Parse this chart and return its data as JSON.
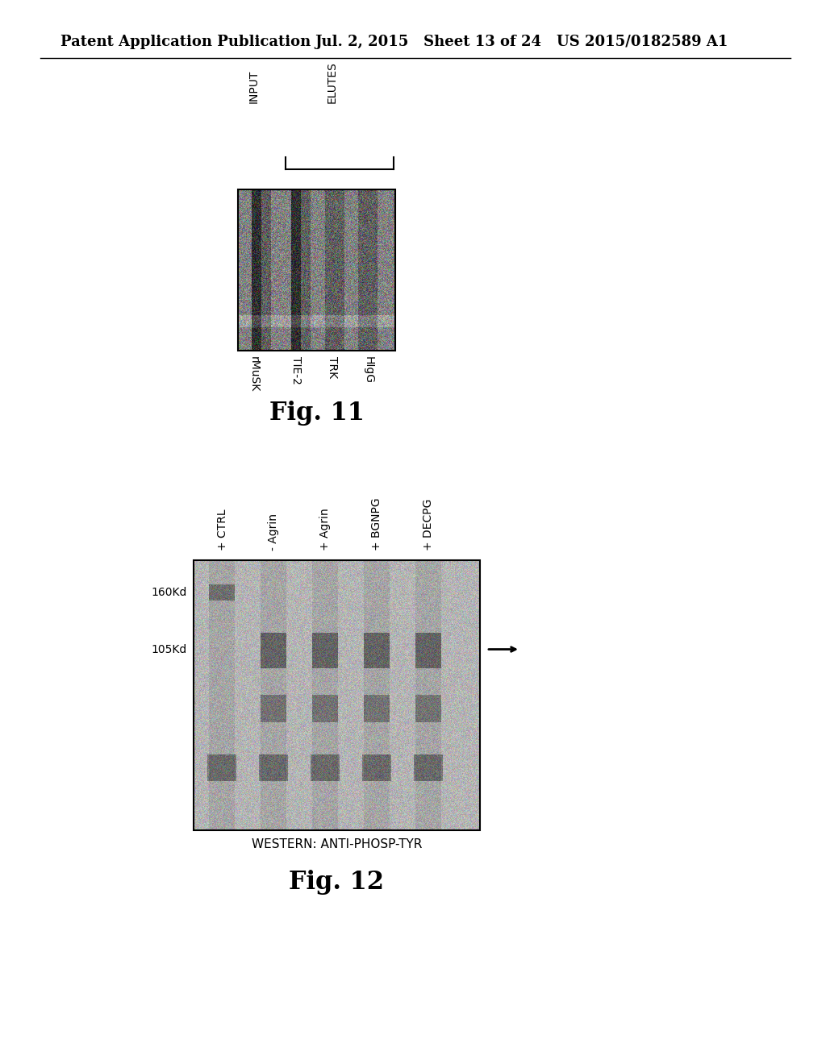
{
  "bg_color": "#ffffff",
  "header_left": "Patent Application Publication",
  "header_mid": "Jul. 2, 2015   Sheet 13 of 24",
  "header_right": "US 2015/0182589 A1",
  "fig11_title": "Fig. 11",
  "fig12_title": "Fig. 12",
  "fig11_label_input": "INPUT",
  "fig11_label_elutes": "ELUTES",
  "fig11_col_labels": [
    "rMuSK",
    "TIE-2",
    "TRK",
    "HIgG"
  ],
  "fig12_col_labels": [
    "+ CTRL",
    "- Agrin",
    "+ Agrin",
    "+ BGNPG",
    "+ DECPG"
  ],
  "fig12_left_labels": [
    "160Kd",
    "105Kd"
  ],
  "fig12_bottom_label": "WESTERN: ANTI-PHOSP-TYR"
}
